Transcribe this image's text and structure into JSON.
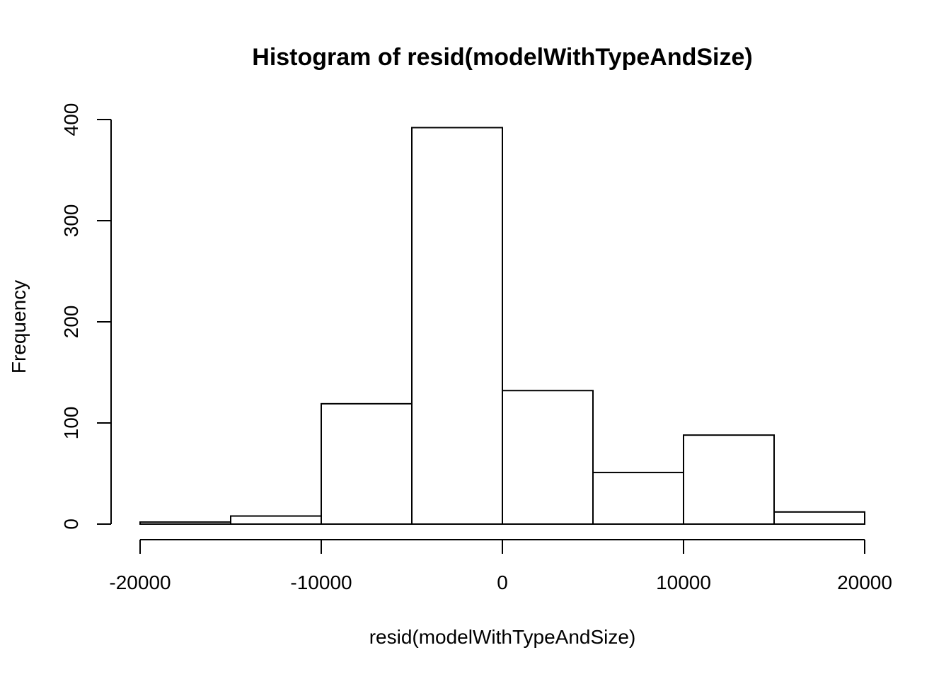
{
  "chart_data": {
    "type": "bar",
    "title": "Histogram of resid(modelWithTypeAndSize)",
    "xlabel": "resid(modelWithTypeAndSize)",
    "ylabel": "Frequency",
    "bins": [
      {
        "from": -20000,
        "to": -15000,
        "count": 2
      },
      {
        "from": -15000,
        "to": -10000,
        "count": 8
      },
      {
        "from": -10000,
        "to": -5000,
        "count": 119
      },
      {
        "from": -5000,
        "to": 0,
        "count": 392
      },
      {
        "from": 0,
        "to": 5000,
        "count": 132
      },
      {
        "from": 5000,
        "to": 10000,
        "count": 51
      },
      {
        "from": 10000,
        "to": 15000,
        "count": 88
      },
      {
        "from": 15000,
        "to": 20000,
        "count": 12
      }
    ],
    "xlim": [
      -20000,
      20000
    ],
    "ylim": [
      0,
      400
    ],
    "x_ticks": [
      -20000,
      -10000,
      0,
      10000,
      20000
    ],
    "x_tick_labels": [
      "-20000",
      "-10000",
      "0",
      "10000",
      "20000"
    ],
    "y_ticks": [
      0,
      100,
      200,
      300,
      400
    ],
    "y_tick_labels": [
      "0",
      "100",
      "200",
      "300",
      "400"
    ],
    "grid": false,
    "legend": "none",
    "bar_fill": "#ffffff",
    "bar_stroke": "#000000"
  }
}
